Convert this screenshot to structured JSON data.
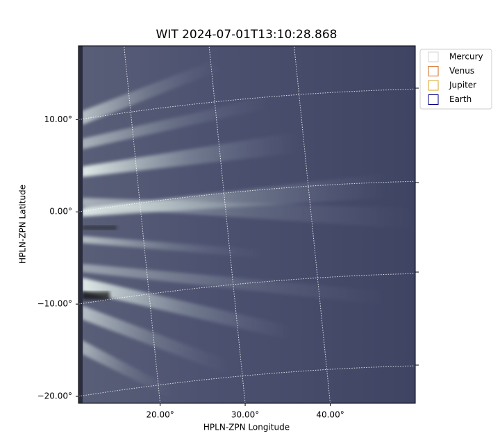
{
  "chart_data": {
    "type": "image",
    "title": "WIT 2024-07-01T13:10:28.868",
    "xlabel": "HPLN-ZPN Longitude",
    "ylabel": "HPLN-ZPN Latitude",
    "xlim": [
      10.4,
      50
    ],
    "ylim": [
      -20.75,
      18
    ],
    "xticks": [
      {
        "value": 20,
        "label": "20.00°"
      },
      {
        "value": 30,
        "label": "30.00°"
      },
      {
        "value": 40,
        "label": "40.00°"
      }
    ],
    "yticks": [
      {
        "value": 10,
        "label": "10.00°"
      },
      {
        "value": 0,
        "label": "0.00°"
      },
      {
        "value": -10,
        "label": "−10.00°"
      },
      {
        "value": -20,
        "label": "−20.00°"
      }
    ],
    "grid": true,
    "legend_position": "upper right",
    "series": [
      {
        "name": "Mercury",
        "color": "#d3d3d3"
      },
      {
        "name": "Venus",
        "color": "#d2691e"
      },
      {
        "name": "Jupiter",
        "color": "#daa520"
      },
      {
        "name": "Earth",
        "color": "#000080"
      }
    ]
  }
}
